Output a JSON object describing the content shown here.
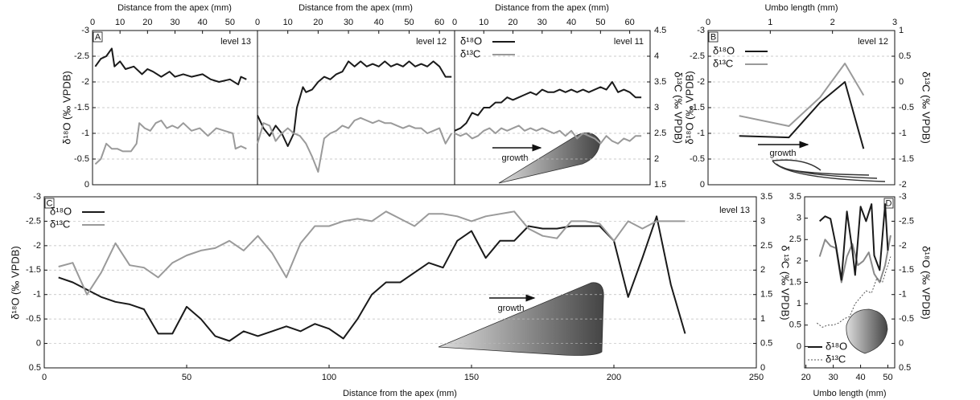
{
  "chart_data": [
    {
      "type": "line",
      "xlabel": "Distance from the apex (mm)",
      "ylabel": "δ¹⁸O (‰ VPDB)",
      "annotations": [
        "A",
        "level 13"
      ],
      "xlim": [
        0,
        60
      ],
      "xticks": [
        0,
        10,
        20,
        30,
        40,
        50
      ],
      "ylim": [
        0,
        -3
      ],
      "yticks": [
        0,
        -0.5,
        -1,
        -1.5,
        -2,
        -2.5,
        -3
      ],
      "y2lim": [
        1.5,
        4.5
      ],
      "grid": true,
      "series": [
        {
          "color": "#1a1a1a",
          "x": [
            1,
            3,
            5,
            7,
            8,
            10,
            12,
            15,
            18,
            20,
            22,
            25,
            28,
            30,
            33,
            36,
            40,
            43,
            46,
            50,
            53,
            54,
            56
          ],
          "values": [
            -2.3,
            -2.45,
            -2.5,
            -2.65,
            -2.3,
            -2.4,
            -2.25,
            -2.3,
            -2.15,
            -2.25,
            -2.2,
            -2.1,
            -2.2,
            -2.1,
            -2.15,
            -2.1,
            -2.15,
            -2.05,
            -2.0,
            -2.05,
            -1.95,
            -2.1,
            -2.05
          ]
        },
        {
          "color": "#9a9a9a",
          "axis": "y2",
          "x": [
            1,
            3,
            5,
            7,
            9,
            11,
            14,
            16,
            17,
            19,
            21,
            23,
            25,
            27,
            29,
            31,
            33,
            36,
            39,
            42,
            45,
            48,
            51,
            52,
            54,
            56
          ],
          "values": [
            1.9,
            2.0,
            2.3,
            2.2,
            2.2,
            2.15,
            2.15,
            2.3,
            2.7,
            2.6,
            2.55,
            2.7,
            2.75,
            2.6,
            2.65,
            2.6,
            2.7,
            2.55,
            2.6,
            2.45,
            2.6,
            2.55,
            2.5,
            2.2,
            2.25,
            2.2
          ]
        }
      ]
    },
    {
      "type": "line",
      "xlabel": "Distance from the apex (mm)",
      "annotations": [
        "level 12"
      ],
      "xlim": [
        0,
        65
      ],
      "xticks": [
        0,
        10,
        20,
        30,
        40,
        50,
        60
      ],
      "ylim": [
        0,
        -3
      ],
      "yticks": [
        0,
        -0.5,
        -1,
        -1.5,
        -2,
        -2.5,
        -3
      ],
      "y_tick_labels": false,
      "y2lim": [
        1.5,
        4.5
      ],
      "grid": true,
      "series": [
        {
          "color": "#1a1a1a",
          "x": [
            0,
            2,
            4,
            6,
            8,
            10,
            12,
            13,
            14,
            15,
            16,
            18,
            20,
            22,
            24,
            26,
            28,
            30,
            32,
            34,
            36,
            38,
            40,
            42,
            44,
            46,
            48,
            50,
            52,
            54,
            56,
            58,
            60,
            62,
            64
          ],
          "values": [
            -1.35,
            -1.1,
            -0.95,
            -1.15,
            -1.0,
            -0.75,
            -1.0,
            -1.5,
            -1.7,
            -1.9,
            -1.8,
            -1.85,
            -2.0,
            -2.1,
            -2.05,
            -2.15,
            -2.2,
            -2.4,
            -2.3,
            -2.4,
            -2.3,
            -2.35,
            -2.3,
            -2.4,
            -2.3,
            -2.35,
            -2.3,
            -2.4,
            -2.3,
            -2.35,
            -2.3,
            -2.4,
            -2.3,
            -2.1,
            -2.1
          ]
        },
        {
          "color": "#9a9a9a",
          "axis": "y2",
          "x": [
            0,
            2,
            4,
            6,
            8,
            10,
            12,
            14,
            16,
            18,
            20,
            22,
            24,
            26,
            28,
            30,
            32,
            34,
            36,
            38,
            40,
            42,
            44,
            46,
            48,
            50,
            52,
            54,
            56,
            58,
            60,
            62,
            64
          ],
          "values": [
            2.3,
            2.7,
            2.65,
            2.35,
            2.5,
            2.6,
            2.5,
            2.45,
            2.3,
            2.05,
            1.75,
            2.4,
            2.5,
            2.55,
            2.65,
            2.6,
            2.75,
            2.8,
            2.75,
            2.7,
            2.75,
            2.7,
            2.7,
            2.65,
            2.6,
            2.65,
            2.6,
            2.6,
            2.5,
            2.55,
            2.6,
            2.3,
            2.5
          ]
        }
      ]
    },
    {
      "type": "line",
      "xlabel": "Distance from the apex (mm)",
      "y2label": "δ¹³C (‰ VPDB)",
      "annotations": [
        "level 11",
        "growth"
      ],
      "xlim": [
        0,
        67
      ],
      "xticks": [
        0,
        10,
        20,
        30,
        40,
        50,
        60
      ],
      "ylim": [
        0,
        -3
      ],
      "yticks": [
        0,
        -0.5,
        -1,
        -1.5,
        -2,
        -2.5,
        -3
      ],
      "y_tick_labels": false,
      "y2lim": [
        1.5,
        4.5
      ],
      "y2ticks": [
        1.5,
        2,
        2.5,
        3,
        3.5,
        4,
        4.5
      ],
      "grid": true,
      "legend": "upper left",
      "series": [
        {
          "name": "δ¹⁸O",
          "color": "#1a1a1a",
          "x": [
            0,
            2,
            4,
            6,
            8,
            10,
            12,
            14,
            16,
            18,
            20,
            22,
            24,
            26,
            28,
            30,
            32,
            34,
            36,
            38,
            40,
            42,
            44,
            46,
            48,
            50,
            52,
            54,
            56,
            58,
            60,
            62,
            64
          ],
          "values": [
            -1.05,
            -1.1,
            -1.2,
            -1.4,
            -1.35,
            -1.5,
            -1.5,
            -1.6,
            -1.6,
            -1.7,
            -1.65,
            -1.7,
            -1.75,
            -1.8,
            -1.75,
            -1.85,
            -1.8,
            -1.8,
            -1.85,
            -1.8,
            -1.85,
            -1.8,
            -1.85,
            -1.8,
            -1.85,
            -1.9,
            -1.85,
            -2.0,
            -1.8,
            -1.85,
            -1.8,
            -1.7,
            -1.7
          ]
        },
        {
          "name": "δ¹³C",
          "color": "#9a9a9a",
          "axis": "y2",
          "x": [
            0,
            2,
            4,
            6,
            8,
            10,
            12,
            14,
            16,
            18,
            20,
            22,
            24,
            26,
            28,
            30,
            32,
            34,
            36,
            38,
            40,
            42,
            44,
            46,
            48,
            50,
            52,
            54,
            56,
            58,
            60,
            62,
            64
          ],
          "values": [
            2.5,
            2.45,
            2.5,
            2.4,
            2.45,
            2.55,
            2.6,
            2.5,
            2.6,
            2.55,
            2.6,
            2.65,
            2.55,
            2.6,
            2.55,
            2.6,
            2.55,
            2.5,
            2.55,
            2.45,
            2.55,
            2.4,
            2.5,
            2.45,
            2.4,
            2.3,
            2.45,
            2.35,
            2.3,
            2.4,
            2.35,
            2.45,
            2.45
          ]
        }
      ]
    },
    {
      "type": "line",
      "xlabel": "Umbo length (mm)",
      "ylabel": "δ¹⁸O (‰ VPDB)",
      "y2label": "δ¹³C (‰ VPDB)",
      "annotations": [
        "B",
        "level 12",
        "growth"
      ],
      "xlim": [
        0,
        3
      ],
      "xticks": [
        0,
        1,
        2,
        3
      ],
      "ylim": [
        0,
        -3
      ],
      "yticks": [
        0,
        -0.5,
        -1,
        -1.5,
        -2,
        -2.5,
        -3
      ],
      "y2lim": [
        -2,
        1
      ],
      "y2ticks": [
        -2,
        -1.5,
        -1,
        -0.5,
        0,
        0.5,
        1
      ],
      "grid": true,
      "legend": "upper left",
      "series": [
        {
          "name": "δ¹⁸O",
          "color": "#1a1a1a",
          "x": [
            0.5,
            1.3,
            1.8,
            2.2,
            2.5
          ],
          "values": [
            -0.95,
            -0.92,
            -1.6,
            -2.0,
            -0.7
          ]
        },
        {
          "name": "δ¹³C",
          "color": "#9a9a9a",
          "axis": "y2",
          "x": [
            0.5,
            1.3,
            1.8,
            2.2,
            2.5
          ],
          "values": [
            -0.66,
            -0.86,
            -0.3,
            0.36,
            -0.26
          ]
        }
      ]
    },
    {
      "type": "line",
      "xlabel": "Distance from the apex (mm)",
      "ylabel": "δ¹⁸O (‰ VPDB)",
      "y2label": "δ ¹³C (‰ VPDB)",
      "annotations": [
        "C",
        "level 13",
        "growth"
      ],
      "xlim": [
        0,
        250
      ],
      "xticks": [
        0,
        50,
        100,
        150,
        200,
        250
      ],
      "ylim": [
        0.5,
        -3
      ],
      "yticks": [
        0.5,
        0,
        -0.5,
        -1,
        -1.5,
        -2,
        -2.5,
        -3
      ],
      "y2lim": [
        0,
        3.5
      ],
      "y2ticks": [
        0,
        0.5,
        1,
        1.5,
        2,
        2.5,
        3,
        3.5
      ],
      "grid": true,
      "legend": "upper left",
      "series": [
        {
          "name": "δ¹⁸O",
          "color": "#1a1a1a",
          "x": [
            5,
            10,
            15,
            20,
            25,
            30,
            35,
            40,
            45,
            50,
            55,
            60,
            65,
            70,
            75,
            80,
            85,
            90,
            95,
            100,
            105,
            110,
            115,
            120,
            125,
            130,
            135,
            140,
            145,
            150,
            155,
            160,
            165,
            170,
            175,
            180,
            185,
            190,
            195,
            200,
            205,
            210,
            215,
            220,
            225
          ],
          "values": [
            -1.35,
            -1.25,
            -1.1,
            -0.95,
            -0.85,
            -0.8,
            -0.7,
            -0.2,
            -0.2,
            -0.75,
            -0.5,
            -0.15,
            -0.05,
            -0.25,
            -0.15,
            -0.25,
            -0.35,
            -0.25,
            -0.4,
            -0.3,
            -0.1,
            -0.5,
            -1.0,
            -1.25,
            -1.25,
            -1.45,
            -1.65,
            -1.55,
            -2.1,
            -2.3,
            -1.75,
            -2.1,
            -2.1,
            -2.4,
            -2.35,
            -2.35,
            -2.4,
            -2.4,
            -2.4,
            -2.1,
            -0.95,
            -1.75,
            -2.6,
            -1.2,
            -0.2
          ]
        },
        {
          "name": "δ¹³C",
          "color": "#9a9a9a",
          "axis": "y2",
          "x": [
            5,
            10,
            15,
            20,
            25,
            30,
            35,
            40,
            45,
            50,
            55,
            60,
            65,
            70,
            75,
            80,
            85,
            90,
            95,
            100,
            105,
            110,
            115,
            120,
            125,
            130,
            135,
            140,
            145,
            150,
            155,
            160,
            165,
            170,
            175,
            180,
            185,
            190,
            195,
            200,
            205,
            210,
            215,
            220,
            225
          ],
          "values": [
            2.07,
            2.15,
            1.5,
            1.95,
            2.55,
            2.1,
            2.05,
            1.85,
            2.15,
            2.3,
            2.4,
            2.45,
            2.6,
            2.4,
            2.7,
            2.35,
            1.85,
            2.55,
            2.9,
            2.9,
            3.0,
            3.05,
            3.0,
            3.2,
            3.05,
            2.9,
            3.15,
            3.15,
            3.1,
            3.0,
            3.1,
            3.15,
            3.2,
            2.85,
            2.7,
            2.65,
            3.0,
            3.0,
            2.95,
            2.6,
            3.0,
            2.85,
            3.0,
            3.0,
            3.0
          ]
        }
      ]
    },
    {
      "type": "line",
      "xlabel": "Umbo length (mm)",
      "y2label": "δ¹⁸O (‰ VPDB)",
      "annotations": [
        "D"
      ],
      "xlim": [
        19.5,
        52.5
      ],
      "xticks": [
        20,
        30,
        40,
        50
      ],
      "ylim": [
        -0.5,
        3.5
      ],
      "yticks": [
        0,
        0.5,
        1,
        1.5,
        2,
        2.5,
        3,
        3.5
      ],
      "y2lim": [
        0.5,
        -3
      ],
      "y2ticks": [
        0.5,
        0,
        -0.5,
        -1,
        -1.5,
        -2,
        -2.5,
        -3
      ],
      "legend": "lower left",
      "series": [
        {
          "color": "#8a8a8a",
          "x": [
            25,
            27,
            29,
            31,
            33,
            35,
            37,
            39,
            41,
            43,
            45,
            47,
            49,
            51
          ],
          "values": [
            2.1,
            2.5,
            2.35,
            2.3,
            1.5,
            2.1,
            2.4,
            1.9,
            2.0,
            2.2,
            1.7,
            1.5,
            1.9,
            2.6
          ]
        },
        {
          "name": "δ¹⁸O",
          "color": "#1a1a1a",
          "axis": "y2",
          "x": [
            25,
            27,
            29,
            31,
            33,
            35,
            37,
            38,
            40,
            42,
            44,
            45,
            47,
            49,
            50
          ],
          "values": [
            -2.5,
            -2.6,
            -2.55,
            -2.0,
            -1.3,
            -2.7,
            -1.9,
            -1.4,
            -2.8,
            -2.5,
            -2.85,
            -1.8,
            -1.5,
            -2.85,
            -1.9
          ]
        },
        {
          "name": "δ¹³C",
          "color": "#555555",
          "linestyle": "dotted",
          "x": [
            24,
            26,
            28,
            30,
            32,
            34,
            36,
            38,
            40,
            42,
            44,
            46,
            48,
            50,
            51
          ],
          "values": [
            0.55,
            0.45,
            0.5,
            0.5,
            0.55,
            0.65,
            0.7,
            1.0,
            1.15,
            1.3,
            1.25,
            1.6,
            1.5,
            1.9,
            2.1
          ]
        }
      ]
    }
  ]
}
